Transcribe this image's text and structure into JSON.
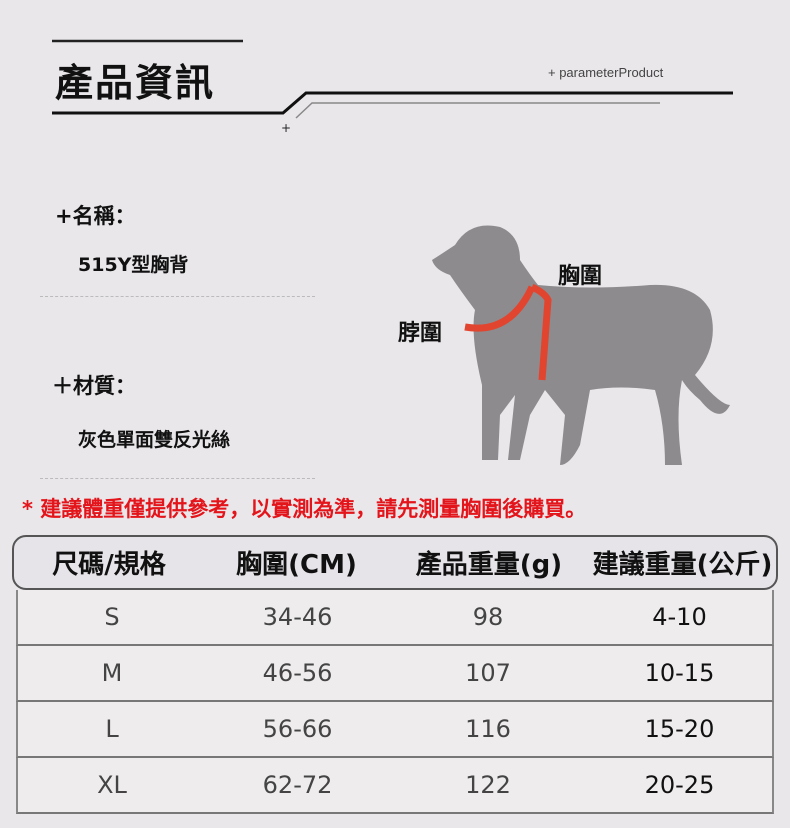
{
  "header": {
    "title": "產品資訊",
    "subtitle": "+ parameterProduct"
  },
  "name": {
    "label": "+名稱：",
    "value": "515Y型胸背"
  },
  "material": {
    "label": "＋材質：",
    "value": "灰色單面雙反光絲"
  },
  "diagram": {
    "chest_label": "胸圍",
    "neck_label": "脖圍",
    "harness_color": "#e2452f",
    "dog_color": "#8d8b8e"
  },
  "notice": "* 建議體重僅提供參考，以實測為準，請先測量胸圍後購買。",
  "table": {
    "headers": [
      "尺碼/規格",
      "胸圍(CM)",
      "產品重量(g)",
      "建議重量(公斤)"
    ],
    "rows": [
      [
        "S",
        "34-46",
        "98",
        "4-10"
      ],
      [
        "M",
        "46-56",
        "107",
        "10-15"
      ],
      [
        "L",
        "56-66",
        "116",
        "15-20"
      ],
      [
        "XL",
        "62-72",
        "122",
        "20-25"
      ]
    ]
  }
}
